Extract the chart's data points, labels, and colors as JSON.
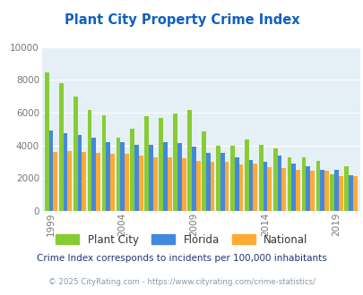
{
  "title": "Plant City Property Crime Index",
  "title_color": "#1060c0",
  "subtitle": "Crime Index corresponds to incidents per 100,000 inhabitants",
  "footer": "© 2025 CityRating.com - https://www.cityrating.com/crime-statistics/",
  "years": [
    1999,
    2000,
    2001,
    2002,
    2003,
    2004,
    2005,
    2006,
    2007,
    2008,
    2009,
    2010,
    2011,
    2012,
    2013,
    2014,
    2015,
    2016,
    2017,
    2018,
    2019,
    2020
  ],
  "plant_city": [
    8450,
    7800,
    7000,
    6150,
    5850,
    4450,
    5000,
    5800,
    5650,
    5950,
    6150,
    4850,
    4000,
    4000,
    4350,
    4050,
    3800,
    3300,
    3300,
    3050,
    2250,
    2750
  ],
  "florida": [
    4900,
    4750,
    4650,
    4450,
    4200,
    4200,
    4050,
    4050,
    4200,
    4150,
    3950,
    3550,
    3550,
    3300,
    3100,
    3000,
    3400,
    2900,
    2750,
    2500,
    2500,
    2200
  ],
  "national": [
    3600,
    3650,
    3600,
    3550,
    3500,
    3500,
    3400,
    3300,
    3250,
    3200,
    3050,
    3000,
    3000,
    2850,
    2900,
    2650,
    2600,
    2500,
    2470,
    2450,
    2100,
    2100
  ],
  "plant_city_color": "#88cc33",
  "florida_color": "#4488dd",
  "national_color": "#ffaa33",
  "bg_color": "#e4f0f5",
  "ylim": [
    0,
    10000
  ],
  "yticks": [
    0,
    2000,
    4000,
    6000,
    8000,
    10000
  ],
  "xtick_years": [
    1999,
    2004,
    2009,
    2014,
    2019
  ],
  "subtitle_color": "#223377",
  "footer_color": "#8899aa",
  "footer_url_color": "#4488cc"
}
